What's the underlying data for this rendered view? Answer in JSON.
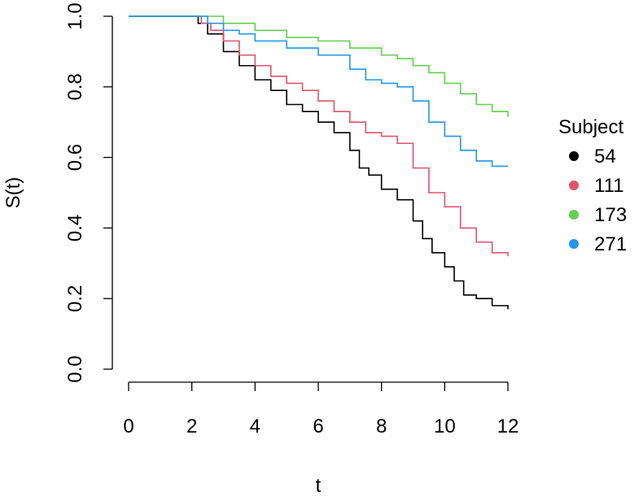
{
  "chart_data": {
    "type": "line",
    "step": true,
    "title": "",
    "xlabel": "t",
    "ylabel": "S(t)",
    "xlim": [
      0,
      12
    ],
    "ylim": [
      0,
      1
    ],
    "xticks": [
      0,
      2,
      4,
      6,
      8,
      10,
      12
    ],
    "yticks": [
      0.0,
      0.2,
      0.4,
      0.6,
      0.8,
      1.0
    ],
    "ytick_labels": [
      "0.0",
      "0.2",
      "0.4",
      "0.6",
      "0.8",
      "1.0"
    ],
    "grid": false,
    "legend": {
      "title": "Subject",
      "placement": "right"
    },
    "series": [
      {
        "name": "54",
        "color": "#000000",
        "x": [
          0,
          2,
          2.2,
          2.5,
          3.0,
          3.5,
          4.0,
          4.5,
          5.0,
          5.5,
          6.0,
          6.5,
          7.0,
          7.3,
          7.6,
          8.0,
          8.5,
          9.0,
          9.3,
          9.6,
          10.0,
          10.3,
          10.6,
          11.0,
          11.5,
          12.0
        ],
        "y": [
          1.0,
          1.0,
          0.98,
          0.95,
          0.9,
          0.86,
          0.82,
          0.79,
          0.75,
          0.73,
          0.7,
          0.67,
          0.62,
          0.57,
          0.55,
          0.51,
          0.48,
          0.42,
          0.37,
          0.33,
          0.29,
          0.25,
          0.21,
          0.2,
          0.18,
          0.17
        ]
      },
      {
        "name": "111",
        "color": "#DF536B",
        "x": [
          0,
          2,
          2.3,
          2.6,
          3.0,
          3.5,
          4.0,
          4.5,
          5.0,
          5.5,
          6.0,
          6.5,
          7.0,
          7.5,
          8.0,
          8.5,
          9.0,
          9.5,
          10.0,
          10.5,
          11.0,
          11.5,
          12.0
        ],
        "y": [
          1.0,
          1.0,
          0.98,
          0.96,
          0.93,
          0.89,
          0.86,
          0.83,
          0.81,
          0.79,
          0.76,
          0.73,
          0.7,
          0.67,
          0.66,
          0.64,
          0.57,
          0.5,
          0.46,
          0.4,
          0.36,
          0.33,
          0.32
        ]
      },
      {
        "name": "173",
        "color": "#61D04F",
        "x": [
          0,
          2,
          3.0,
          4.0,
          5.0,
          6.0,
          7.0,
          8.0,
          8.5,
          9.0,
          9.5,
          10.0,
          10.5,
          11.0,
          11.5,
          12.0
        ],
        "y": [
          1.0,
          1.0,
          0.98,
          0.96,
          0.94,
          0.93,
          0.91,
          0.89,
          0.88,
          0.86,
          0.84,
          0.81,
          0.78,
          0.75,
          0.73,
          0.715
        ]
      },
      {
        "name": "271",
        "color": "#2297E6",
        "x": [
          0,
          2,
          2.5,
          3.0,
          3.5,
          4.0,
          5.0,
          6.0,
          7.0,
          7.5,
          8.0,
          8.5,
          9.0,
          9.5,
          10.0,
          10.5,
          11.0,
          11.5,
          12.0
        ],
        "y": [
          1.0,
          1.0,
          0.98,
          0.96,
          0.95,
          0.93,
          0.91,
          0.89,
          0.85,
          0.82,
          0.81,
          0.8,
          0.76,
          0.7,
          0.66,
          0.62,
          0.59,
          0.575,
          0.575
        ]
      }
    ]
  }
}
